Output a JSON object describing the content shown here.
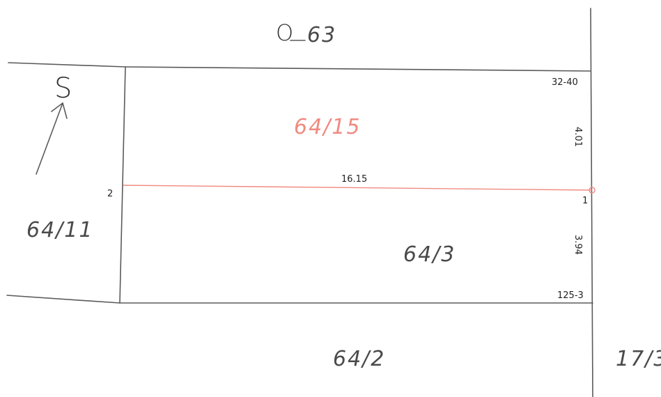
{
  "road": {
    "letter": "O",
    "number": "63"
  },
  "north_label": "S",
  "parcels": {
    "top": "64/15",
    "bottom": "64/3",
    "left": "64/11",
    "below": "64/2",
    "right": "17/3"
  },
  "corners": {
    "top_right": "32-40",
    "bottom_right": "125-3"
  },
  "points": {
    "left": "2",
    "right": "1"
  },
  "dimensions": {
    "division_length": "16.15",
    "top_segment": "4.01",
    "bottom_segment": "3.94"
  },
  "colors": {
    "division_line": "#f08a80",
    "border": "#5a5a5a"
  }
}
